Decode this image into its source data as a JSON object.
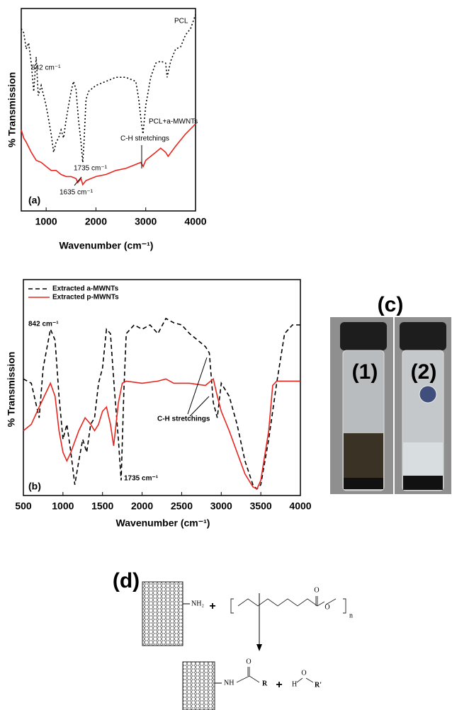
{
  "chart_data": [
    {
      "type": "line",
      "panel_label": "(a)",
      "x_label": "Wavenumber (cm⁻¹)",
      "y_label": "% Transmission",
      "xlim": [
        500,
        4000
      ],
      "ylim": [
        0,
        100
      ],
      "xticks": [
        1000,
        2000,
        3000,
        4000
      ],
      "series": [
        {
          "name": "PCL",
          "color": "#000000",
          "line_style": "dotted",
          "x": [
            500,
            550,
            600,
            650,
            700,
            750,
            800,
            842,
            900,
            1000,
            1050,
            1100,
            1150,
            1200,
            1250,
            1300,
            1350,
            1400,
            1450,
            1500,
            1550,
            1600,
            1650,
            1700,
            1735,
            1760,
            1800,
            1850,
            1900,
            2000,
            2200,
            2400,
            2600,
            2800,
            2860,
            2900,
            2945,
            3000,
            3100,
            3200,
            3300,
            3400,
            3430,
            3500,
            3600,
            3700,
            3800,
            3900,
            4000
          ],
          "values": [
            90,
            88,
            80,
            83,
            73,
            59,
            76,
            57,
            62,
            52,
            45,
            38,
            29,
            34,
            36,
            40,
            36,
            45,
            52,
            59,
            64,
            60,
            45,
            34,
            24,
            34,
            55,
            59,
            60,
            62,
            64,
            66,
            66,
            64,
            55,
            46,
            38,
            52,
            66,
            73,
            74,
            73,
            66,
            74,
            80,
            81,
            87,
            90,
            97
          ]
        },
        {
          "name": "PCL+a-MWNTs",
          "color": "#e8261f",
          "line_style": "solid",
          "x": [
            500,
            550,
            600,
            700,
            800,
            900,
            1000,
            1100,
            1200,
            1300,
            1400,
            1500,
            1600,
            1635,
            1700,
            1735,
            1800,
            2000,
            2200,
            2400,
            2600,
            2800,
            2900,
            2950,
            3000,
            3200,
            3300,
            3400,
            3450,
            3600,
            3800,
            4000
          ],
          "values": [
            40,
            36,
            34,
            29,
            25,
            24,
            22,
            20,
            20,
            18,
            17,
            17,
            16,
            14,
            16,
            13,
            15,
            17,
            18,
            20,
            21,
            23,
            24,
            22,
            25,
            29,
            31,
            29,
            27,
            32,
            38,
            43
          ]
        }
      ],
      "annotations": [
        "842 cm⁻¹",
        "1735 cm⁻¹",
        "1635 cm⁻¹",
        "C-H stretchings"
      ]
    },
    {
      "type": "line",
      "panel_label": "(b)",
      "x_label": "Wavenumber (cm⁻¹)",
      "y_label": "% Transmission",
      "xlim": [
        500,
        4000
      ],
      "ylim": [
        0,
        100
      ],
      "xticks": [
        500,
        1000,
        1500,
        2000,
        2500,
        3000,
        3500,
        4000
      ],
      "legend": "top-left",
      "series": [
        {
          "name": "Extracted a-MWNTs",
          "color": "#000000",
          "line_style": "dashed",
          "x": [
            500,
            600,
            700,
            750,
            842,
            900,
            950,
            1000,
            1050,
            1100,
            1150,
            1200,
            1250,
            1300,
            1350,
            1400,
            1450,
            1500,
            1550,
            1600,
            1650,
            1700,
            1735,
            1770,
            1800,
            1900,
            2000,
            2100,
            2200,
            2300,
            2400,
            2500,
            2600,
            2700,
            2800,
            2850,
            2900,
            2950,
            3000,
            3100,
            3200,
            3300,
            3400,
            3450,
            3500,
            3600,
            3700,
            3800,
            3900,
            4000
          ],
          "values": [
            54,
            52,
            36,
            59,
            77,
            72,
            46,
            26,
            33,
            20,
            5,
            16,
            26,
            20,
            33,
            36,
            52,
            59,
            77,
            75,
            49,
            26,
            7,
            49,
            75,
            79,
            77,
            79,
            75,
            82,
            80,
            79,
            75,
            72,
            69,
            66,
            43,
            36,
            52,
            46,
            33,
            16,
            5,
            3,
            5,
            26,
            52,
            75,
            79,
            79
          ]
        },
        {
          "name": "Extracted p-MWNTs",
          "color": "#e8261f",
          "line_style": "solid",
          "x": [
            500,
            600,
            700,
            842,
            900,
            950,
            1000,
            1050,
            1100,
            1200,
            1280,
            1350,
            1400,
            1450,
            1500,
            1550,
            1600,
            1640,
            1700,
            1750,
            1800,
            2000,
            2200,
            2300,
            2400,
            2600,
            2800,
            2900,
            2950,
            3000,
            3100,
            3200,
            3300,
            3400,
            3450,
            3500,
            3600,
            3650,
            3700,
            4000
          ],
          "values": [
            30,
            33,
            41,
            52,
            46,
            30,
            20,
            16,
            20,
            30,
            36,
            33,
            30,
            33,
            39,
            41,
            33,
            23,
            43,
            52,
            53,
            52,
            53,
            54,
            52,
            52,
            51,
            54,
            46,
            39,
            30,
            20,
            10,
            4,
            3,
            7,
            30,
            51,
            53,
            53
          ]
        }
      ],
      "annotations": [
        "842 cm⁻¹",
        "1735 cm⁻¹",
        "C-H stretchings"
      ]
    }
  ],
  "photo": {
    "label": "(c)",
    "vials": [
      "(1)",
      "(2)"
    ]
  },
  "scheme": {
    "label": "(d)",
    "amine": "NH₂",
    "plus": "+",
    "carbonyl_o": "O",
    "ester_o": "O",
    "repeat": "n",
    "amide": "NH",
    "amide_o": "O",
    "r": "R",
    "plus2": "+",
    "h": "H",
    "o": "O",
    "r2": "R'"
  }
}
